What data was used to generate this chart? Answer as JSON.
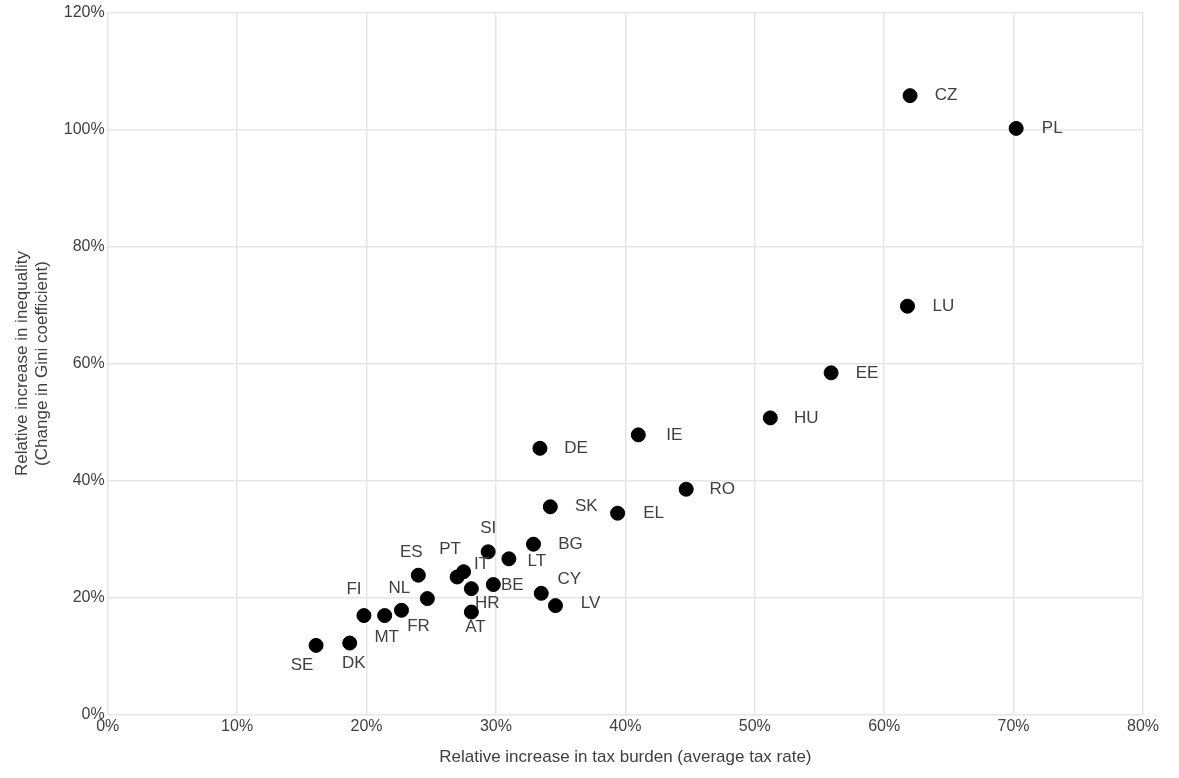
{
  "chart_data": {
    "type": "scatter",
    "xlabel": "Relative increase in tax burden (average tax rate)",
    "ylabel": "Relative increase in inequality\n(Change in Gini coefficient)",
    "x": [
      16.1,
      18.7,
      19.8,
      21.4,
      22.7,
      24.7,
      24.0,
      27.0,
      27.5,
      28.1,
      28.1,
      29.4,
      29.8,
      31.0,
      32.9,
      33.5,
      34.6,
      34.2,
      39.4,
      33.4,
      41.0,
      44.7,
      51.2,
      55.9,
      61.8,
      62.0,
      70.2
    ],
    "values": [
      11.8,
      12.2,
      16.9,
      16.9,
      17.8,
      19.8,
      23.8,
      23.5,
      24.4,
      21.5,
      17.5,
      27.8,
      22.2,
      26.6,
      29.1,
      20.7,
      18.6,
      35.5,
      34.4,
      45.5,
      47.8,
      38.5,
      50.7,
      58.4,
      69.8,
      105.8,
      100.2
    ],
    "value_labels": [
      "SE",
      "DK",
      "FI",
      "MT",
      "FR",
      "NL",
      "ES",
      "PT",
      "IT",
      "HR",
      "AT",
      "SI",
      "BE",
      "LT",
      "BG",
      "CY",
      "LV",
      "SK",
      "EL",
      "DE",
      "IE",
      "RO",
      "HU",
      "EE",
      "LU",
      "CZ",
      "PL"
    ],
    "color": "#000000",
    "marker": "circle",
    "grid": true,
    "xlim": [
      0,
      80
    ],
    "xticks": [
      {
        "value": 0,
        "label": "0%"
      },
      {
        "value": 10,
        "label": "10%"
      },
      {
        "value": 20,
        "label": "20%"
      },
      {
        "value": 30,
        "label": "30%"
      },
      {
        "value": 40,
        "label": "40%"
      },
      {
        "value": 50,
        "label": "50%"
      },
      {
        "value": 60,
        "label": "60%"
      },
      {
        "value": 70,
        "label": "70%"
      },
      {
        "value": 80,
        "label": "80%"
      }
    ],
    "ylim": [
      0,
      120
    ],
    "yticks": [
      {
        "value": 0,
        "label": "0%"
      },
      {
        "value": 20,
        "label": "20%"
      },
      {
        "value": 40,
        "label": "40%"
      },
      {
        "value": 60,
        "label": "60%"
      },
      {
        "value": 80,
        "label": "80%"
      },
      {
        "value": 100,
        "label": "100%"
      },
      {
        "value": 120,
        "label": "120%"
      }
    ]
  }
}
